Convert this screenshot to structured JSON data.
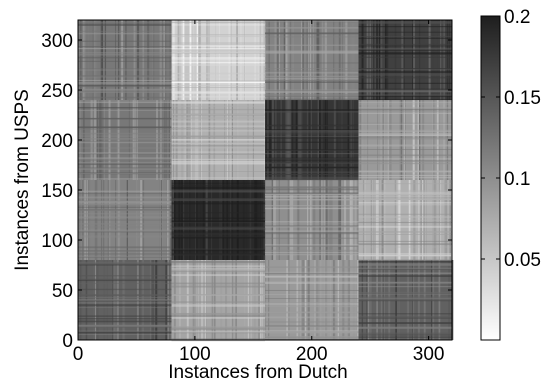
{
  "chart_data": {
    "type": "heatmap",
    "title": "",
    "xlabel": "Instances from Dutch",
    "ylabel": "Instances from USPS",
    "xlim": [
      0,
      320
    ],
    "ylim": [
      0,
      320
    ],
    "x_ticks": [
      "0",
      "100",
      "200",
      "300"
    ],
    "y_ticks": [
      "0",
      "50",
      "100",
      "150",
      "200",
      "250",
      "300"
    ],
    "x_tick_values": [
      0,
      100,
      200,
      300
    ],
    "y_tick_values": [
      0,
      50,
      100,
      150,
      200,
      250,
      300
    ],
    "colormap": "gray (white = low, black = high)",
    "colorbar": {
      "range": [
        0,
        0.2
      ],
      "ticks": [
        "0.05",
        "0.1",
        "0.15",
        "0.2"
      ],
      "tick_values": [
        0.05,
        0.1,
        0.15,
        0.2
      ],
      "placement": "right"
    },
    "block_size": 80,
    "x_blocks": [
      "0-80",
      "80-160",
      "160-240",
      "240-320"
    ],
    "y_blocks": [
      "0-80",
      "80-160",
      "160-240",
      "240-320"
    ],
    "block_mean_values": [
      [
        0.14,
        0.08,
        0.09,
        0.14
      ],
      [
        0.11,
        0.19,
        0.1,
        0.07
      ],
      [
        0.12,
        0.07,
        0.18,
        0.09
      ],
      [
        0.12,
        0.04,
        0.11,
        0.17
      ]
    ]
  }
}
